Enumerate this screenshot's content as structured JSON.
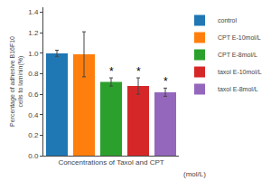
{
  "chart_data": {
    "type": "bar",
    "categories": [
      "control",
      "CPT E-10mol/L",
      "CPT E-8mol/L",
      "taxol E-10mol/L",
      "taxol E-8mol/L"
    ],
    "values": [
      1.0,
      0.99,
      0.72,
      0.68,
      0.62
    ],
    "errors": [
      0.03,
      0.22,
      0.04,
      0.08,
      0.04
    ],
    "ylabel": "Percentage of adhesive B16F10\ncells to laminin(%)",
    "xlabel": "Concentrations of Taxol and CPT",
    "annotations": [
      {
        "text": "(mol/L)"
      },
      {
        "category": "CPT E-8mol/L",
        "text": "*"
      },
      {
        "category": "taxol E-10mol/L",
        "text": "*"
      },
      {
        "category": "taxol E-8mol/L",
        "text": "*"
      }
    ],
    "ylim": [
      0,
      1.45
    ],
    "yticks": [
      {
        "value": 0,
        "label": "0.0"
      },
      0.2,
      0.4,
      0.6,
      0.8,
      {
        "value": 1.0,
        "label": "1.0"
      },
      1.2,
      1.4
    ],
    "grid": false,
    "legend": "right",
    "tick_labels": "y"
  }
}
